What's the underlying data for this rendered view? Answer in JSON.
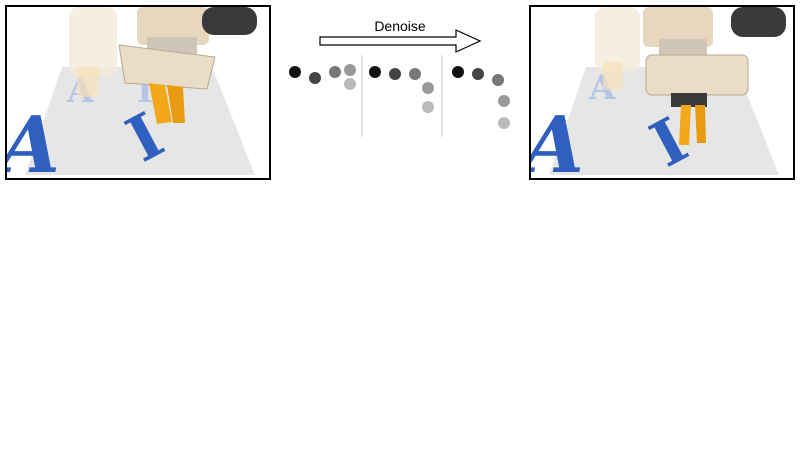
{
  "process": {
    "arrow_label": "Denoise"
  },
  "colors": {
    "frame_border": "#000000",
    "letter_blue": "#2f5fbf",
    "letter_blue_faded": "#a8bde8",
    "gripper_orange": "#f2a81a",
    "robot_beige": "#e8d7bf",
    "table_gray": "#e6e6e6",
    "divider": "#cccccc"
  },
  "trajectory": {
    "stages": [
      {
        "points": [
          {
            "shade": "#111111"
          },
          {
            "shade": "#444444"
          },
          {
            "shade": "#777777"
          },
          {
            "shade": "#999999"
          },
          {
            "shade": "#bbbbbb"
          }
        ]
      },
      {
        "points": [
          {
            "shade": "#111111"
          },
          {
            "shade": "#444444"
          },
          {
            "shade": "#777777"
          },
          {
            "shade": "#999999"
          },
          {
            "shade": "#bbbbbb"
          }
        ]
      },
      {
        "points": [
          {
            "shade": "#111111"
          },
          {
            "shade": "#444444"
          },
          {
            "shade": "#777777"
          },
          {
            "shade": "#999999"
          },
          {
            "shade": "#bbbbbb"
          }
        ]
      }
    ]
  },
  "panels": {
    "left": {
      "icon": "robot-scene-icon",
      "letters": [
        "A",
        "I"
      ]
    },
    "right": {
      "icon": "robot-scene-icon",
      "letters": [
        "A",
        "I"
      ]
    }
  }
}
